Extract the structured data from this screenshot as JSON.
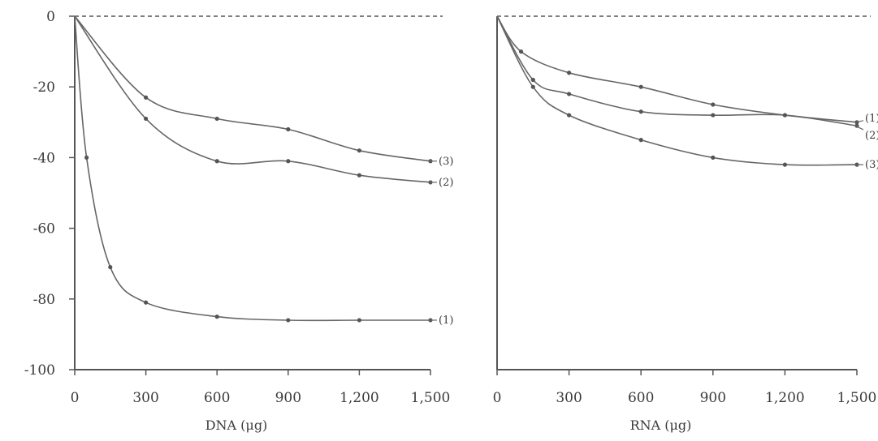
{
  "chart_data": [
    {
      "type": "line",
      "xlabel": "DNA (μg)",
      "ylabel": "",
      "xlim": [
        0,
        1500
      ],
      "ylim": [
        -100,
        0
      ],
      "xticks": [
        0,
        300,
        600,
        900,
        1200,
        1500
      ],
      "xtick_labels": [
        "0",
        "300",
        "600",
        "900",
        "1,200",
        "1,500"
      ],
      "yticks": [
        0,
        -20,
        -40,
        -60,
        -80,
        -100
      ],
      "ytick_labels": [
        "0",
        "-20",
        "-40",
        "-60",
        "-80",
        "-100"
      ],
      "reference_line": {
        "y": 0,
        "style": "dashed"
      },
      "grid": false,
      "series": [
        {
          "name": "(1)",
          "x": [
            0,
            50,
            150,
            300,
            600,
            900,
            1200,
            1500
          ],
          "y": [
            0,
            -40,
            -71,
            -81,
            -85,
            -86,
            -86,
            -86
          ]
        },
        {
          "name": "(2)",
          "x": [
            0,
            300,
            600,
            900,
            1200,
            1500
          ],
          "y": [
            0,
            -29,
            -41,
            -41,
            -45,
            -47
          ]
        },
        {
          "name": "(3)",
          "x": [
            0,
            300,
            600,
            900,
            1200,
            1500
          ],
          "y": [
            0,
            -23,
            -29,
            -32,
            -38,
            -41
          ]
        }
      ]
    },
    {
      "type": "line",
      "xlabel": "RNA (μg)",
      "ylabel": "",
      "xlim": [
        0,
        1500
      ],
      "ylim": [
        -100,
        0
      ],
      "xticks": [
        0,
        300,
        600,
        900,
        1200,
        1500
      ],
      "xtick_labels": [
        "0",
        "300",
        "600",
        "900",
        "1,200",
        "1,500"
      ],
      "reference_line": {
        "y": 0,
        "style": "dashed"
      },
      "grid": false,
      "series": [
        {
          "name": "(1)",
          "x": [
            0,
            100,
            300,
            600,
            900,
            1200,
            1500
          ],
          "y": [
            0,
            -10,
            -16,
            -20,
            -25,
            -28,
            -30
          ]
        },
        {
          "name": "(2)",
          "x": [
            0,
            150,
            300,
            600,
            900,
            1200,
            1500
          ],
          "y": [
            0,
            -18,
            -22,
            -27,
            -28,
            -28,
            -31
          ]
        },
        {
          "name": "(3)",
          "x": [
            0,
            150,
            300,
            600,
            900,
            1200,
            1500
          ],
          "y": [
            0,
            -20,
            -28,
            -35,
            -40,
            -42,
            -42
          ]
        }
      ]
    }
  ]
}
